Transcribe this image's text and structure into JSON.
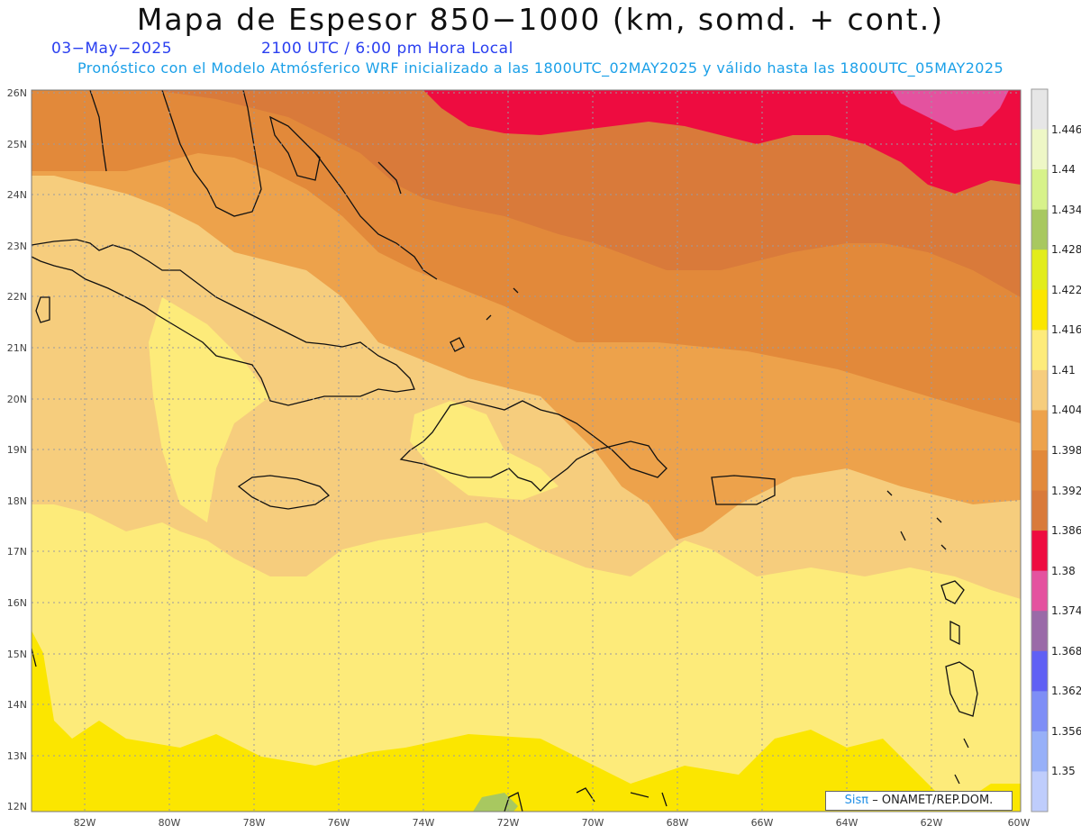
{
  "header": {
    "title": "Mapa de Espesor 850−1000 (km, somd. + cont.)",
    "date": "03−May−2025",
    "time": "2100 UTC / 6:00 pm Hora Local",
    "model_info": "Pronóstico con el Modelo Atmósferico WRF inicializado a las 1800UTC_02MAY2025 y válido hasta las  1800UTC_05MAY2025"
  },
  "map": {
    "region": "Caribbean",
    "lon_range": [
      -83.2,
      -60.0
    ],
    "lat_range": [
      11.9,
      26.1
    ],
    "lat_ticks": [
      "26N",
      "25N",
      "24N",
      "23N",
      "22N",
      "21N",
      "20N",
      "19N",
      "18N",
      "17N",
      "16N",
      "15N",
      "14N",
      "13N",
      "12N"
    ],
    "lon_ticks": [
      "82W",
      "80W",
      "78W",
      "76W",
      "74W",
      "72W",
      "70W",
      "68W",
      "66W",
      "64W",
      "62W",
      "60W"
    ]
  },
  "colorbar": {
    "levels": [
      "1.446",
      "1.44",
      "1.434",
      "1.428",
      "1.422",
      "1.416",
      "1.41",
      "1.404",
      "1.398",
      "1.392",
      "1.386",
      "1.38",
      "1.374",
      "1.368",
      "1.362",
      "1.356",
      "1.35"
    ],
    "colors": [
      "#e6e6e6",
      "#eef7c6",
      "#d7f28a",
      "#a8c860",
      "#e2ec1c",
      "#fbe600",
      "#fdeb7a",
      "#f6cd7d",
      "#eda24b",
      "#e2893a",
      "#d97a3a",
      "#ee0c40",
      "#e4529f",
      "#9a6aa8",
      "#6060f4",
      "#7e8ef6",
      "#97b0f8",
      "#bfcdfc"
    ]
  },
  "credit": {
    "sis": "Sisπ",
    "org": "– ONAMET/REP.DOM."
  }
}
